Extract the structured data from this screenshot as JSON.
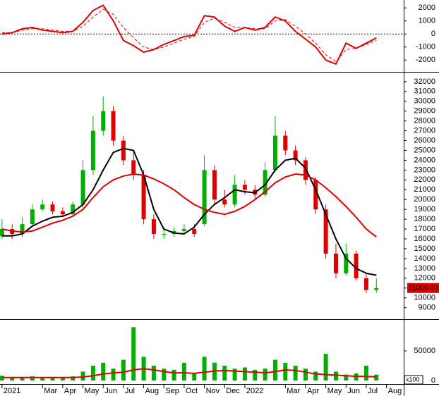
{
  "chart_data": [
    {
      "type": "line",
      "x": [
        0,
        0.5,
        1,
        1.5,
        2,
        2.5,
        3,
        3.5,
        4,
        4.5,
        5,
        5.5,
        6,
        6.5,
        7,
        7.5,
        8,
        8.5,
        9,
        9.5,
        10,
        10.5,
        11,
        11.5,
        12,
        12.5,
        13,
        13.5,
        14,
        14.5,
        15,
        15.5,
        16,
        16.5,
        17,
        17.5,
        18,
        18.5
      ],
      "series": [
        {
          "color": "#e00000",
          "values": [
            0,
            100,
            400,
            500,
            300,
            200,
            100,
            200,
            900,
            1800,
            2200,
            1000,
            -500,
            -900,
            -1400,
            -1200,
            -800,
            -500,
            -200,
            -100,
            1400,
            1300,
            600,
            200,
            500,
            300,
            500,
            1300,
            1000,
            200,
            -400,
            -1000,
            -2000,
            -2300,
            -700,
            -1100,
            -700,
            -300
          ]
        },
        {
          "color": "#e00000",
          "dashed": true,
          "values": [
            100,
            100,
            300,
            400,
            400,
            300,
            200,
            200,
            600,
            1300,
            1900,
            1500,
            500,
            -300,
            -1000,
            -1200,
            -1000,
            -700,
            -400,
            -200,
            900,
            1200,
            900,
            500,
            500,
            400,
            400,
            1000,
            1100,
            600,
            0,
            -700,
            -1600,
            -2100,
            -1200,
            -1100,
            -800,
            -500
          ]
        }
      ],
      "ylim": [
        -2800,
        2500
      ],
      "yticks": [
        -2000,
        -1000,
        0,
        1000,
        2000
      ],
      "zero_line": true,
      "xlim": [
        -0.1,
        19.85
      ]
    },
    {
      "type": "candlestick",
      "x": [
        0,
        0.5,
        1,
        1.5,
        2,
        2.5,
        3,
        3.5,
        4,
        4.5,
        5,
        5.5,
        6,
        6.5,
        7,
        7.5,
        8,
        8.5,
        9,
        9.5,
        10,
        10.5,
        11,
        11.5,
        12,
        12.5,
        13,
        13.5,
        14,
        14.5,
        15,
        15.5,
        16,
        16.5,
        17,
        17.5,
        18,
        18.5
      ],
      "open": [
        16300,
        17000,
        16500,
        17500,
        19000,
        19500,
        18800,
        18500,
        19500,
        23000,
        27000,
        29000,
        26000,
        24000,
        22500,
        18000,
        16500,
        16500,
        16800,
        17000,
        17500,
        23000,
        20000,
        19500,
        21500,
        21000,
        20500,
        23000,
        26500,
        25000,
        24000,
        22000,
        19000,
        14500,
        12500,
        14500,
        12000,
        10800
      ],
      "high": [
        18000,
        17500,
        18200,
        19500,
        20000,
        19800,
        19200,
        19800,
        24000,
        28500,
        30500,
        29500,
        26500,
        25000,
        23000,
        18500,
        17200,
        17200,
        17500,
        17500,
        24500,
        23500,
        21000,
        22500,
        22000,
        21500,
        23800,
        28500,
        27000,
        25500,
        24300,
        22300,
        19500,
        15500,
        15500,
        14800,
        12500,
        12000
      ],
      "low": [
        16000,
        16000,
        16200,
        17300,
        18800,
        18500,
        18200,
        18300,
        19200,
        22500,
        26500,
        25500,
        23500,
        22000,
        17500,
        16000,
        16000,
        16200,
        16500,
        16200,
        17300,
        19500,
        19200,
        19200,
        20500,
        20000,
        20300,
        22800,
        24500,
        23500,
        21500,
        18500,
        14000,
        12000,
        12300,
        11800,
        10500,
        10500
      ],
      "close": [
        17000,
        16500,
        17500,
        19000,
        19500,
        18800,
        18500,
        19500,
        23000,
        27000,
        29000,
        26000,
        24000,
        22500,
        18000,
        16500,
        16500,
        16800,
        17000,
        16500,
        23000,
        20000,
        19500,
        21500,
        21000,
        20500,
        23000,
        26500,
        25000,
        24000,
        22000,
        19000,
        14500,
        12500,
        14500,
        12000,
        10800,
        11000
      ],
      "up_color": "#00b000",
      "down_color": "#e00000",
      "lines": [
        {
          "color": "#000000",
          "values": [
            16300,
            16300,
            16500,
            17300,
            17800,
            18200,
            18300,
            18700,
            19500,
            21000,
            23000,
            24800,
            25200,
            25000,
            22500,
            19000,
            17000,
            16600,
            16500,
            17200,
            18500,
            19500,
            20200,
            21000,
            20800,
            20700,
            21500,
            23000,
            24000,
            24200,
            23200,
            21000,
            18500,
            16000,
            14000,
            13000,
            12500,
            12300
          ]
        },
        {
          "color": "#e00000",
          "values": [
            17000,
            16800,
            16700,
            16800,
            17200,
            17600,
            17900,
            18300,
            19000,
            20200,
            21300,
            22000,
            22400,
            22600,
            22500,
            22100,
            21600,
            21000,
            20200,
            19500,
            19000,
            18700,
            18500,
            18800,
            19300,
            20000,
            20800,
            21700,
            22300,
            22600,
            22500,
            22000,
            21200,
            20300,
            19300,
            18200,
            17000,
            16200
          ]
        }
      ],
      "last_label": {
        "value": 11000,
        "label": "11000.00"
      },
      "ylim": [
        7900,
        32850
      ],
      "yticks": [
        9000,
        10000,
        11000,
        12000,
        13000,
        14000,
        15000,
        16000,
        17000,
        18000,
        19000,
        20000,
        21000,
        22000,
        23000,
        24000,
        25000,
        26000,
        27000,
        28000,
        29000,
        30000,
        31000,
        32000
      ],
      "xlim": [
        -0.1,
        19.85
      ]
    },
    {
      "type": "bar",
      "x": [
        0,
        0.5,
        1,
        1.5,
        2,
        2.5,
        3,
        3.5,
        4,
        4.5,
        5,
        5.5,
        6,
        6.5,
        7,
        7.5,
        8,
        8.5,
        9,
        9.5,
        10,
        10.5,
        11,
        11.5,
        12,
        12.5,
        13,
        13.5,
        14,
        14.5,
        15,
        15.5,
        16,
        16.5,
        17,
        17.5,
        18,
        18.5
      ],
      "values": [
        8000,
        6000,
        5000,
        7000,
        6000,
        5000,
        6000,
        7000,
        15000,
        25000,
        30000,
        20000,
        35000,
        90000,
        40000,
        25000,
        20000,
        18000,
        30000,
        12000,
        40000,
        30000,
        25000,
        20000,
        22000,
        18000,
        20000,
        35000,
        30000,
        25000,
        20000,
        15000,
        45000,
        15000,
        10000,
        12000,
        25000,
        10000
      ],
      "color": "#00b000",
      "lines": [
        {
          "color": "#e00000",
          "values": [
            5000,
            5000,
            5000,
            5000,
            5000,
            5000,
            5000,
            5000,
            6000,
            8000,
            11000,
            13000,
            14000,
            18000,
            20000,
            18000,
            15000,
            13000,
            13000,
            12000,
            14000,
            16000,
            17000,
            16000,
            15000,
            14000,
            13000,
            15000,
            18000,
            17000,
            14000,
            11000,
            10000,
            9000,
            8000,
            7000,
            7000,
            6000
          ]
        }
      ],
      "unit_label": "x100",
      "ylim": [
        0,
        100000
      ],
      "yticks": [
        0,
        50000
      ],
      "xlim": [
        -0.1,
        19.85
      ],
      "xticks": [
        {
          "value": 0,
          "label": "2021"
        },
        {
          "value": 2,
          "label": "Mar"
        },
        {
          "value": 3,
          "label": "Apr"
        },
        {
          "value": 4,
          "label": "May"
        },
        {
          "value": 5,
          "label": "Jun"
        },
        {
          "value": 6,
          "label": "Jul"
        },
        {
          "value": 7,
          "label": "Aug"
        },
        {
          "value": 8,
          "label": "Sep"
        },
        {
          "value": 9,
          "label": "Oct"
        },
        {
          "value": 10,
          "label": "Nov"
        },
        {
          "value": 11,
          "label": "Dec"
        },
        {
          "value": 12,
          "label": "2022"
        },
        {
          "value": 14,
          "label": "Mar"
        },
        {
          "value": 15,
          "label": "Apr"
        },
        {
          "value": 16,
          "label": "May"
        },
        {
          "value": 17,
          "label": "Jun"
        },
        {
          "value": 18,
          "label": "Jul"
        },
        {
          "value": 19,
          "label": "Aug"
        }
      ]
    }
  ]
}
